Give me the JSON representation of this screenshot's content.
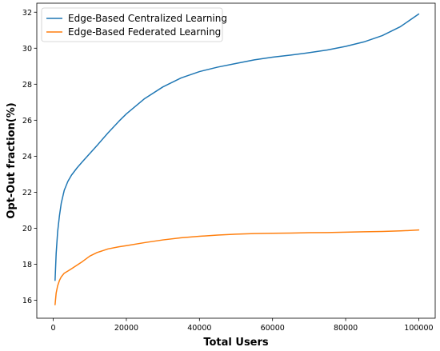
{
  "chart_data": {
    "type": "line",
    "xlabel": "Total Users",
    "ylabel": "Opt-Out fraction(%)",
    "xlim": [
      -4500,
      104500
    ],
    "ylim": [
      15.0,
      32.5
    ],
    "xticks": [
      0,
      20000,
      40000,
      60000,
      80000,
      100000
    ],
    "xtick_labels": [
      "0",
      "20000",
      "40000",
      "60000",
      "80000",
      "100000"
    ],
    "yticks": [
      16,
      18,
      20,
      22,
      24,
      26,
      28,
      30,
      32
    ],
    "ytick_labels": [
      "16",
      "18",
      "20",
      "22",
      "24",
      "26",
      "28",
      "30",
      "32"
    ],
    "grid": false,
    "legend_position": "top-left",
    "series": [
      {
        "name": "Edge-Based Centralized Learning",
        "color": "#1f77b4",
        "x": [
          500,
          800,
          1200,
          1700,
          2200,
          3000,
          4000,
          5000,
          6500,
          8000,
          10000,
          12000,
          15000,
          18000,
          20000,
          25000,
          30000,
          35000,
          40000,
          45000,
          50000,
          55000,
          60000,
          65000,
          70000,
          75000,
          80000,
          85000,
          90000,
          95000,
          100000
        ],
        "y": [
          17.1,
          18.6,
          19.8,
          20.7,
          21.4,
          22.1,
          22.6,
          22.95,
          23.35,
          23.7,
          24.15,
          24.6,
          25.3,
          25.95,
          26.35,
          27.2,
          27.85,
          28.35,
          28.7,
          28.95,
          29.15,
          29.35,
          29.5,
          29.62,
          29.75,
          29.9,
          30.1,
          30.35,
          30.7,
          31.2,
          31.9
        ]
      },
      {
        "name": "Edge-Based Federated Learning",
        "color": "#ff7f0e",
        "x": [
          500,
          800,
          1200,
          1700,
          2200,
          3000,
          4000,
          5000,
          6500,
          8000,
          10000,
          12000,
          15000,
          18000,
          20000,
          25000,
          30000,
          35000,
          40000,
          45000,
          50000,
          55000,
          60000,
          65000,
          70000,
          75000,
          80000,
          85000,
          90000,
          95000,
          100000
        ],
        "y": [
          15.75,
          16.4,
          16.8,
          17.1,
          17.3,
          17.5,
          17.62,
          17.75,
          17.95,
          18.15,
          18.45,
          18.65,
          18.85,
          18.97,
          19.03,
          19.2,
          19.35,
          19.47,
          19.55,
          19.62,
          19.67,
          19.7,
          19.72,
          19.73,
          19.75,
          19.76,
          19.78,
          19.8,
          19.82,
          19.85,
          19.9
        ]
      }
    ]
  }
}
